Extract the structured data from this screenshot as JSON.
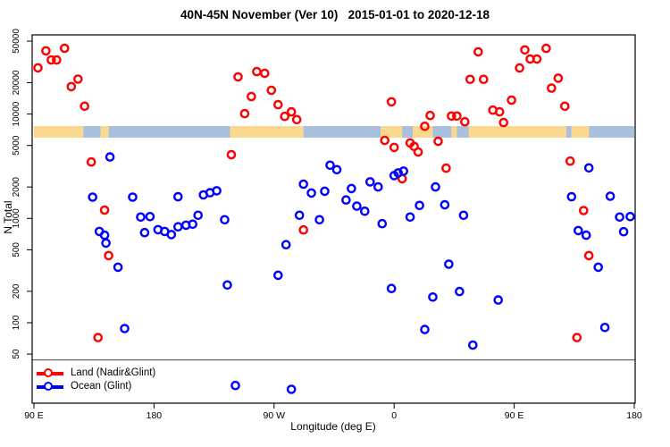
{
  "title": "40N-45N November (Ver 10)   2015-01-01 to 2020-12-18",
  "colors": {
    "land_series": "#FF0000",
    "ocean_series": "#0000FF",
    "band_land": "#FAD98E",
    "band_ocean": "#A9BFDB",
    "axis": "#000000",
    "divider": "#444444"
  },
  "legend": {
    "items": [
      {
        "label": "Land (Nadir&Glint)",
        "color": "#FF0000"
      },
      {
        "label": "Ocean (Glint)",
        "color": "#0000FF"
      }
    ]
  },
  "chart_data": {
    "type": "scatter",
    "title": "40N-45N November (Ver 10)   2015-01-01 to 2020-12-18",
    "xlabel": "Longitude (deg E)",
    "ylabel": "N Total",
    "x_axis": {
      "range": [
        90,
        540
      ],
      "note": "extended longitude axis: 90E wraps through 180, 90W, 0, 90E, 180",
      "ticks": [
        {
          "value": 90,
          "label": "90 E"
        },
        {
          "value": 180,
          "label": "180"
        },
        {
          "value": 270,
          "label": "90 W"
        },
        {
          "value": 360,
          "label": "0"
        },
        {
          "value": 450,
          "label": "90 E"
        },
        {
          "value": 540,
          "label": "180"
        }
      ]
    },
    "y_axis": {
      "scale": "log",
      "range": [
        17,
        57000
      ],
      "ticks": [
        50,
        100,
        200,
        500,
        1000,
        2000,
        5000,
        10000,
        20000,
        50000
      ]
    },
    "divider_line_n": 44,
    "map_band": {
      "n_range": [
        5930,
        7670
      ],
      "segments": [
        {
          "from": 90,
          "to": 127,
          "type": "land"
        },
        {
          "from": 127,
          "to": 140,
          "type": "ocean"
        },
        {
          "from": 140,
          "to": 146,
          "type": "land"
        },
        {
          "from": 146,
          "to": 237,
          "type": "ocean"
        },
        {
          "from": 237,
          "to": 292,
          "type": "land"
        },
        {
          "from": 292,
          "to": 350,
          "type": "ocean"
        },
        {
          "from": 350,
          "to": 366,
          "type": "land"
        },
        {
          "from": 366,
          "to": 374,
          "type": "ocean"
        },
        {
          "from": 374,
          "to": 389,
          "type": "land"
        },
        {
          "from": 389,
          "to": 403,
          "type": "ocean"
        },
        {
          "from": 403,
          "to": 407,
          "type": "land"
        },
        {
          "from": 407,
          "to": 416,
          "type": "ocean"
        },
        {
          "from": 416,
          "to": 489,
          "type": "land"
        },
        {
          "from": 489,
          "to": 493,
          "type": "ocean"
        },
        {
          "from": 493,
          "to": 506,
          "type": "land"
        },
        {
          "from": 506,
          "to": 540,
          "type": "ocean"
        }
      ]
    },
    "series": [
      {
        "name": "Land (Nadir&Glint)",
        "color": "#FF0000",
        "points": [
          [
            93,
            27700
          ],
          [
            99,
            40300
          ],
          [
            103,
            33000
          ],
          [
            107,
            33000
          ],
          [
            113,
            42700
          ],
          [
            118,
            18300
          ],
          [
            123,
            21600
          ],
          [
            128,
            11900
          ],
          [
            133,
            3470
          ],
          [
            138,
            72
          ],
          [
            143,
            1200
          ],
          [
            146,
            440
          ],
          [
            238,
            4080
          ],
          [
            243,
            22700
          ],
          [
            248,
            10100
          ],
          [
            253,
            14700
          ],
          [
            257,
            25500
          ],
          [
            263,
            24600
          ],
          [
            268,
            16900
          ],
          [
            273,
            12300
          ],
          [
            278,
            9500
          ],
          [
            283,
            10500
          ],
          [
            287,
            8840
          ],
          [
            292,
            775
          ],
          [
            353,
            5600
          ],
          [
            358,
            13100
          ],
          [
            360,
            4790
          ],
          [
            366,
            2400
          ],
          [
            372,
            5280
          ],
          [
            375,
            4890
          ],
          [
            378,
            4330
          ],
          [
            383,
            7630
          ],
          [
            387,
            9680
          ],
          [
            393,
            5480
          ],
          [
            399,
            3030
          ],
          [
            403,
            9570
          ],
          [
            407,
            9570
          ],
          [
            413,
            8440
          ],
          [
            417,
            21500
          ],
          [
            423,
            39500
          ],
          [
            427,
            21500
          ],
          [
            434,
            10900
          ],
          [
            439,
            10500
          ],
          [
            442,
            8290
          ],
          [
            448,
            13600
          ],
          [
            454,
            27600
          ],
          [
            458,
            41200
          ],
          [
            462,
            33700
          ],
          [
            467,
            33700
          ],
          [
            474,
            42600
          ],
          [
            478,
            17700
          ],
          [
            483,
            22100
          ],
          [
            488,
            11900
          ],
          [
            492,
            3540
          ],
          [
            497,
            72
          ],
          [
            502,
            1190
          ],
          [
            506,
            440
          ]
        ]
      },
      {
        "name": "Ocean (Glint)",
        "color": "#0000FF",
        "points": [
          [
            134,
            1600
          ],
          [
            139,
            750
          ],
          [
            143,
            690
          ],
          [
            144,
            580
          ],
          [
            147,
            3880
          ],
          [
            153,
            340
          ],
          [
            158,
            88
          ],
          [
            164,
            1600
          ],
          [
            170,
            1030
          ],
          [
            173,
            730
          ],
          [
            177,
            1040
          ],
          [
            183,
            780
          ],
          [
            188,
            750
          ],
          [
            193,
            700
          ],
          [
            198,
            1610
          ],
          [
            198,
            830
          ],
          [
            204,
            860
          ],
          [
            209,
            880
          ],
          [
            213,
            1070
          ],
          [
            217,
            1680
          ],
          [
            222,
            1760
          ],
          [
            227,
            1840
          ],
          [
            233,
            970
          ],
          [
            235,
            230
          ],
          [
            241,
            25
          ],
          [
            273,
            285
          ],
          [
            279,
            560
          ],
          [
            283,
            23
          ],
          [
            289,
            1070
          ],
          [
            292,
            2130
          ],
          [
            298,
            1750
          ],
          [
            304,
            970
          ],
          [
            308,
            1820
          ],
          [
            312,
            3230
          ],
          [
            317,
            2930
          ],
          [
            324,
            1500
          ],
          [
            328,
            1930
          ],
          [
            332,
            1310
          ],
          [
            338,
            1170
          ],
          [
            342,
            2240
          ],
          [
            348,
            2000
          ],
          [
            351,
            890
          ],
          [
            358,
            213
          ],
          [
            360,
            2570
          ],
          [
            363,
            2730
          ],
          [
            367,
            2840
          ],
          [
            372,
            1030
          ],
          [
            379,
            1330
          ],
          [
            383,
            86
          ],
          [
            389,
            176
          ],
          [
            391,
            2000
          ],
          [
            398,
            1350
          ],
          [
            401,
            364
          ],
          [
            409,
            199
          ],
          [
            412,
            1070
          ],
          [
            419,
            61
          ],
          [
            438,
            165
          ],
          [
            493,
            1610
          ],
          [
            498,
            765
          ],
          [
            504,
            690
          ],
          [
            506,
            3050
          ],
          [
            513,
            340
          ],
          [
            518,
            90
          ],
          [
            522,
            1630
          ],
          [
            529,
            1030
          ],
          [
            532,
            745
          ],
          [
            537,
            1040
          ]
        ]
      }
    ]
  }
}
